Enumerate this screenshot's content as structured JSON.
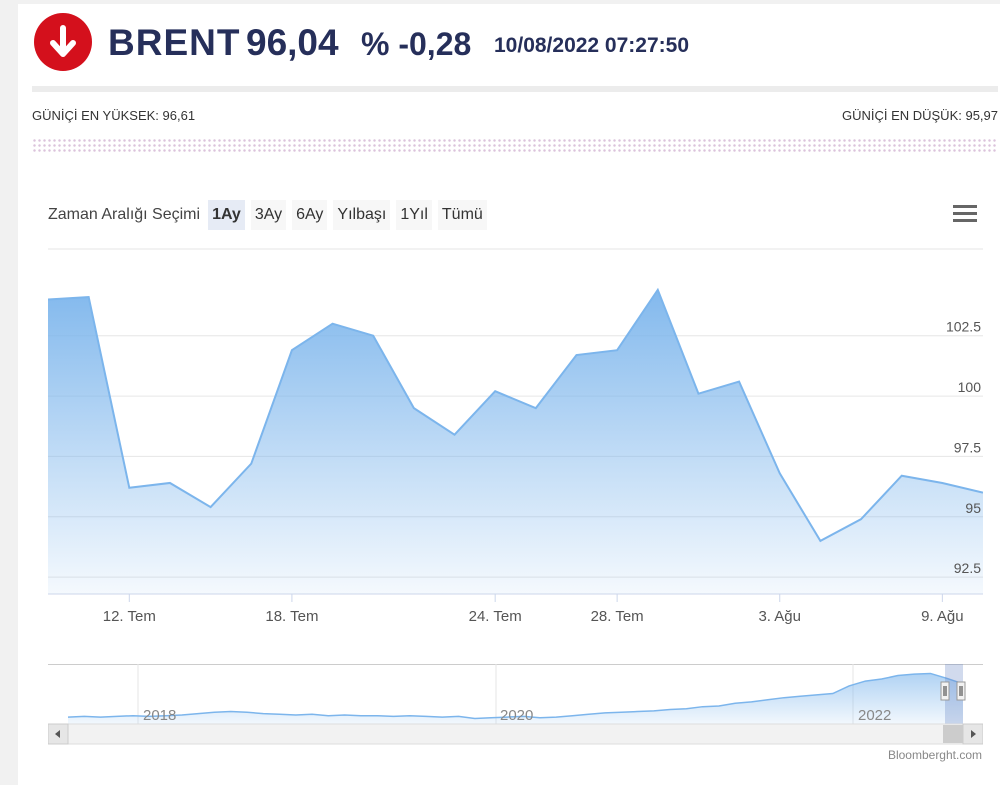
{
  "header": {
    "title": "BRENT",
    "price": "96,04",
    "change": "% -0,28",
    "timestamp": "10/08/2022 07:27:50",
    "badge_icon": "arrow-down-icon",
    "badge_color": "#d4101c",
    "text_color": "#262f5a"
  },
  "stats": {
    "high": "GÜNİÇİ EN YÜKSEK: 96,61",
    "low": "GÜNİÇİ EN DÜŞÜK: 95,97"
  },
  "range_selector": {
    "label": "Zaman Aralığı Seçimi",
    "buttons": [
      "1Ay",
      "3Ay",
      "6Ay",
      "Yılbaşı",
      "1Yıl",
      "Tümü"
    ],
    "active_index": 0
  },
  "menu_icon": "hamburger-menu-icon",
  "chart_data": {
    "type": "area",
    "title": "",
    "xlabel": "",
    "ylabel": "",
    "ylim": [
      91.8,
      106.3
    ],
    "yticks": [
      92.5,
      95,
      97.5,
      100,
      102.5
    ],
    "ytick_labels": [
      "92.5",
      "95",
      "97.5",
      "100",
      "102.5"
    ],
    "xtick_labels": [
      "12. Tem",
      "18. Tem",
      "24. Tem",
      "28. Tem",
      "3. Ağu",
      "9. Ağu"
    ],
    "x": [
      "8 Tem",
      "11 Tem",
      "12 Tem",
      "13 Tem",
      "14 Tem",
      "15 Tem",
      "18 Tem",
      "19 Tem",
      "20 Tem",
      "21 Tem",
      "22 Tem",
      "25 Tem",
      "26 Tem",
      "27 Tem",
      "28 Tem",
      "29 Tem",
      "1 Ağu",
      "2 Ağu",
      "3 Ağu",
      "4 Ağu",
      "5 Ağu",
      "8 Ağu",
      "9 Ağu",
      "10 Ağu"
    ],
    "series": [
      {
        "values": [
          104.0,
          104.1,
          96.2,
          96.4,
          95.4,
          97.2,
          101.9,
          103.0,
          102.5,
          99.5,
          98.4,
          100.2,
          99.5,
          101.7,
          101.9,
          104.4,
          100.1,
          100.6,
          96.8,
          94.0,
          94.9,
          96.7,
          96.4,
          96.0
        ]
      }
    ],
    "line_color": "#7cb5ec",
    "grid": true
  },
  "navigator": {
    "labels": [
      "2018",
      "2020",
      "2022"
    ],
    "values": [
      50,
      51,
      50,
      51,
      52,
      51,
      52,
      53,
      55,
      57,
      58,
      57,
      55,
      54,
      53,
      54,
      52,
      53,
      52,
      52,
      51,
      52,
      51,
      50,
      51,
      48,
      49,
      50,
      51,
      49,
      50,
      52,
      54,
      56,
      57,
      58,
      59,
      61,
      62,
      65,
      66,
      70,
      72,
      75,
      78,
      80,
      82,
      84,
      95,
      102,
      105,
      110,
      112,
      113,
      106,
      98
    ],
    "ylim": [
      40,
      118
    ]
  },
  "credit": "Bloomberght.com"
}
